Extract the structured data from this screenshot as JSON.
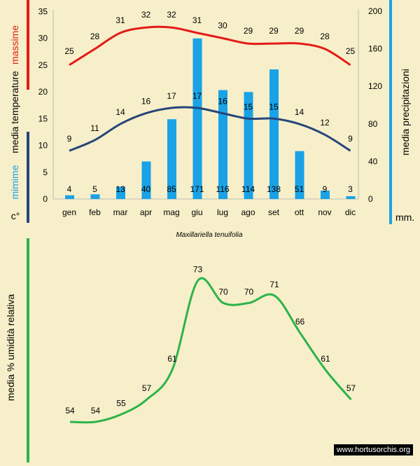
{
  "caption": "Maxillariella tenuifolia",
  "watermark": "www.hortusorchis.org",
  "colors": {
    "max": "#e41b17",
    "min": "#26467a",
    "bars": "#19a2e6",
    "humidity": "#2db34a",
    "paper": "#f6efc9"
  },
  "chart_data": [
    {
      "type": "bar+line",
      "categories": [
        "gen",
        "feb",
        "mar",
        "apr",
        "mag",
        "giu",
        "lug",
        "ago",
        "set",
        "ott",
        "nov",
        "dic"
      ],
      "series": [
        {
          "name": "massime",
          "axis": "temperature",
          "values": [
            25,
            28,
            31,
            32,
            32,
            31,
            30,
            29,
            29,
            29,
            28,
            25
          ]
        },
        {
          "name": "mimime",
          "axis": "temperature",
          "values": [
            9,
            11,
            14,
            16,
            17,
            17,
            16,
            15,
            15,
            14,
            12,
            9
          ]
        },
        {
          "name": "media precipitazioni",
          "axis": "precipitation",
          "values": [
            4,
            5,
            13,
            40,
            85,
            171,
            116,
            114,
            138,
            51,
            9,
            3
          ]
        }
      ],
      "left_axis": {
        "ticks": [
          "0",
          "5",
          "10",
          "15",
          "20",
          "25",
          "30",
          "35"
        ],
        "ylim": [
          0,
          35
        ],
        "unit": "c°",
        "title_main": "media temperature",
        "title_max": "massime",
        "title_min": "mimime"
      },
      "right_axis": {
        "ticks": [
          "0",
          "40",
          "80",
          "120",
          "160",
          "200"
        ],
        "ylim": [
          0,
          200
        ],
        "unit": "mm.",
        "title": "media precipitazioni"
      }
    },
    {
      "type": "line",
      "title": "media % umidità relativa",
      "series": [
        {
          "name": "umidità relativa",
          "values": [
            54,
            54,
            55,
            57,
            61,
            73,
            70,
            70,
            71,
            66,
            61,
            57
          ]
        }
      ]
    }
  ]
}
